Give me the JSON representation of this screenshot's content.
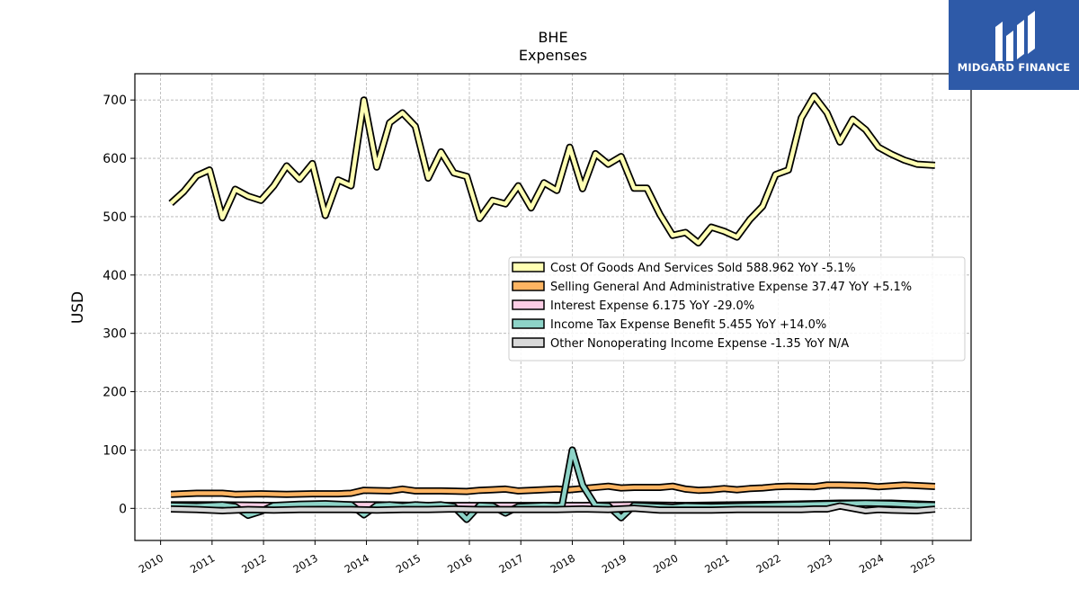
{
  "brand": {
    "name": "MIDGARD FINANCE",
    "bg": "#2e5aa8"
  },
  "chart_data": {
    "type": "line",
    "title": "BHE",
    "subtitle": "Expenses",
    "ylabel": "USD",
    "xlabel": "",
    "ylim": [
      -55,
      745
    ],
    "xlim": [
      2009.5,
      2025.75
    ],
    "yticks": [
      0,
      100,
      200,
      300,
      400,
      500,
      600,
      700
    ],
    "xticks": [
      2010,
      2011,
      2012,
      2013,
      2014,
      2015,
      2016,
      2017,
      2018,
      2019,
      2020,
      2021,
      2022,
      2023,
      2024,
      2025
    ],
    "grid": true,
    "legend_position": "center-right",
    "series": [
      {
        "name": "Cost Of Goods And Services Sold",
        "legend": "Cost Of Goods And Services Sold  588.962 YoY -5.1%",
        "color": "#ffffb3",
        "x": [
          2010.2,
          2010.45,
          2010.7,
          2010.95,
          2011.2,
          2011.45,
          2011.7,
          2011.95,
          2012.2,
          2012.45,
          2012.7,
          2012.95,
          2013.2,
          2013.45,
          2013.7,
          2013.95,
          2014.2,
          2014.45,
          2014.7,
          2014.95,
          2015.2,
          2015.45,
          2015.7,
          2015.95,
          2016.2,
          2016.45,
          2016.7,
          2016.95,
          2017.2,
          2017.45,
          2017.7,
          2017.95,
          2018.2,
          2018.45,
          2018.7,
          2018.95,
          2019.2,
          2019.45,
          2019.7,
          2019.95,
          2020.2,
          2020.45,
          2020.7,
          2020.95,
          2021.2,
          2021.45,
          2021.7,
          2021.95,
          2022.2,
          2022.45,
          2022.7,
          2022.95,
          2023.2,
          2023.45,
          2023.7,
          2023.95,
          2024.2,
          2024.45,
          2024.7,
          2025.05
        ],
        "values": [
          523,
          543,
          570,
          580,
          498,
          547,
          535,
          528,
          553,
          587,
          564,
          591,
          502,
          563,
          553,
          700,
          585,
          661,
          678,
          655,
          566,
          611,
          575,
          569,
          497,
          528,
          522,
          553,
          515,
          558,
          545,
          619,
          548,
          608,
          590,
          603,
          549,
          549,
          504,
          468,
          473,
          455,
          482,
          475,
          465,
          495,
          518,
          572,
          580,
          669,
          707,
          678,
          628,
          667,
          649,
          619,
          607,
          597,
          590,
          588
        ]
      },
      {
        "name": "Selling General And Administrative Expense",
        "legend": "Selling General And Administrative Expense  37.47 YoY +5.1%",
        "color": "#fdb462",
        "x": [
          2010.2,
          2010.7,
          2011.2,
          2011.45,
          2011.95,
          2012.45,
          2012.95,
          2013.45,
          2013.7,
          2013.95,
          2014.45,
          2014.7,
          2014.95,
          2015.45,
          2015.95,
          2016.2,
          2016.45,
          2016.7,
          2016.95,
          2017.2,
          2017.7,
          2017.95,
          2018.2,
          2018.7,
          2018.95,
          2019.2,
          2019.7,
          2019.95,
          2020.2,
          2020.45,
          2020.7,
          2020.95,
          2021.2,
          2021.45,
          2021.7,
          2021.95,
          2022.2,
          2022.7,
          2022.95,
          2023.2,
          2023.7,
          2023.95,
          2024.45,
          2024.7,
          2025.05
        ],
        "values": [
          24,
          26,
          26,
          24,
          25,
          24,
          25,
          25,
          26,
          31,
          30,
          33,
          30,
          30,
          29,
          31,
          32,
          33,
          30,
          31,
          33,
          32,
          34,
          38,
          35,
          36,
          36,
          38,
          33,
          31,
          32,
          34,
          32,
          34,
          35,
          37,
          38,
          37,
          40,
          40,
          39,
          37,
          40,
          39,
          37.5
        ]
      },
      {
        "name": "Interest Expense",
        "legend": "Interest Expense  6.175 YoY -29.0%",
        "color": "#fccde5",
        "x": [
          2010.2,
          2011.2,
          2012.2,
          2013.2,
          2014.2,
          2015.2,
          2016.2,
          2017.2,
          2018.2,
          2019.2,
          2020.2,
          2021.2,
          2022.2,
          2023.2,
          2024.2,
          2025.05
        ],
        "values": [
          6,
          6,
          5,
          6,
          6,
          5,
          5,
          5,
          5,
          6,
          5,
          6,
          7,
          9,
          9,
          6.2
        ]
      },
      {
        "name": "Income Tax Expense Benefit",
        "legend": "Income Tax Expense Benefit  5.455 YoY +14.0%",
        "color": "#8dd3c7",
        "x": [
          2010.2,
          2010.7,
          2011.2,
          2011.45,
          2011.7,
          2011.95,
          2012.2,
          2012.7,
          2013.2,
          2013.7,
          2013.95,
          2014.2,
          2014.45,
          2014.7,
          2014.95,
          2015.2,
          2015.45,
          2015.7,
          2015.95,
          2016.2,
          2016.45,
          2016.7,
          2016.95,
          2017.2,
          2017.45,
          2017.7,
          2017.8,
          2018.0,
          2018.2,
          2018.45,
          2018.7,
          2018.95,
          2019.2,
          2019.45,
          2019.7,
          2019.95,
          2020.2,
          2020.7,
          2021.2,
          2021.7,
          2022.2,
          2022.7,
          2023.2,
          2023.7,
          2024.2,
          2024.7,
          2025.05
        ],
        "values": [
          5,
          4,
          6,
          3,
          -12,
          -5,
          5,
          7,
          8,
          6,
          -11,
          5,
          6,
          4,
          6,
          5,
          6,
          3,
          -19,
          5,
          4,
          -8,
          3,
          4,
          5,
          4,
          5,
          100,
          40,
          5,
          4,
          -16,
          5,
          4,
          3,
          2,
          4,
          3,
          4,
          5,
          6,
          7,
          8,
          9,
          8,
          6,
          5.5
        ]
      },
      {
        "name": "Other Nonoperating Income Expense",
        "legend": "Other Nonoperating Income Expense  -1.35 YoY N/A",
        "color": "#d9d9d9",
        "x": [
          2010.2,
          2010.7,
          2011.2,
          2011.7,
          2012.2,
          2012.7,
          2013.2,
          2013.7,
          2014.2,
          2014.7,
          2015.2,
          2015.7,
          2016.2,
          2016.7,
          2017.2,
          2017.7,
          2018.2,
          2018.7,
          2019.2,
          2019.7,
          2020.2,
          2020.7,
          2021.2,
          2021.7,
          2022.2,
          2022.45,
          2022.7,
          2022.95,
          2023.2,
          2023.7,
          2023.95,
          2024.2,
          2024.7,
          2025.05
        ],
        "values": [
          -1,
          -2,
          -4,
          -2,
          -3,
          -2,
          -2,
          -2,
          -3,
          -2,
          -2,
          -1,
          -2,
          -2,
          -2,
          -2,
          -1,
          -2,
          0,
          -3,
          -3,
          -3,
          -2,
          -2,
          -2,
          -2,
          -1,
          -1,
          4,
          -4,
          -2,
          -3,
          -4,
          -1.35
        ]
      }
    ]
  }
}
